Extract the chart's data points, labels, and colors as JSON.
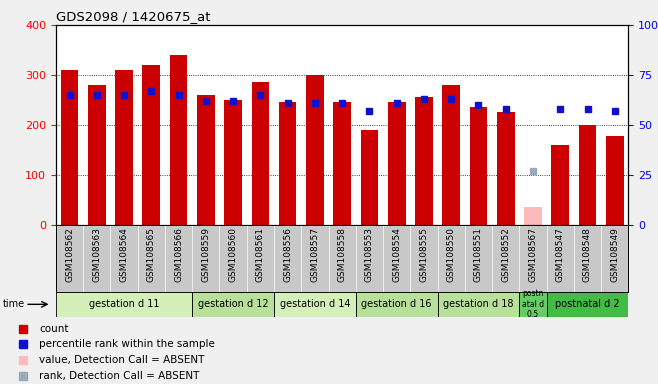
{
  "title": "GDS2098 / 1420675_at",
  "samples": [
    "GSM108562",
    "GSM108563",
    "GSM108564",
    "GSM108565",
    "GSM108566",
    "GSM108559",
    "GSM108560",
    "GSM108561",
    "GSM108556",
    "GSM108557",
    "GSM108558",
    "GSM108553",
    "GSM108554",
    "GSM108555",
    "GSM108550",
    "GSM108551",
    "GSM108552",
    "GSM108567",
    "GSM108547",
    "GSM108548",
    "GSM108549"
  ],
  "counts": [
    310,
    280,
    310,
    320,
    340,
    260,
    250,
    285,
    245,
    300,
    245,
    190,
    245,
    255,
    280,
    235,
    225,
    35,
    160,
    200,
    178
  ],
  "ranks": [
    65,
    65,
    65,
    67,
    65,
    62,
    62,
    65,
    61,
    61,
    61,
    57,
    61,
    63,
    63,
    60,
    58,
    27,
    58,
    58,
    57
  ],
  "absent_value_idx": 17,
  "absent_count": 35,
  "absent_rank": 27,
  "groups": [
    {
      "label": "gestation d 11",
      "start": 0,
      "end": 5,
      "color": "#d4efba"
    },
    {
      "label": "gestation d 12",
      "start": 5,
      "end": 8,
      "color": "#b8e09a"
    },
    {
      "label": "gestation d 14",
      "start": 8,
      "end": 11,
      "color": "#d4efba"
    },
    {
      "label": "gestation d 16",
      "start": 11,
      "end": 14,
      "color": "#b8e09a"
    },
    {
      "label": "gestation d 18",
      "start": 14,
      "end": 17,
      "color": "#b8e09a"
    },
    {
      "label": "postn\natal d\n0.5",
      "start": 17,
      "end": 18,
      "color": "#66cc66"
    },
    {
      "label": "postnatal d 2",
      "start": 18,
      "end": 21,
      "color": "#44bb44"
    }
  ],
  "bar_color": "#cc0000",
  "rank_color": "#1111cc",
  "absent_bar_color": "#ffbbbb",
  "absent_rank_color": "#99aabb",
  "ylim_left": [
    0,
    400
  ],
  "ylim_right": [
    0,
    100
  ],
  "yticks_left": [
    0,
    100,
    200,
    300,
    400
  ],
  "yticks_right": [
    0,
    25,
    50,
    75,
    100
  ],
  "ytick_right_labels": [
    "0",
    "25",
    "50",
    "75",
    "100%"
  ],
  "legend_items": [
    {
      "label": "count",
      "color": "#cc0000"
    },
    {
      "label": "percentile rank within the sample",
      "color": "#1111cc"
    },
    {
      "label": "value, Detection Call = ABSENT",
      "color": "#ffbbbb"
    },
    {
      "label": "rank, Detection Call = ABSENT",
      "color": "#99aabb"
    }
  ],
  "xtick_bg": "#c8c8c8",
  "fig_bg": "#f0f0f0"
}
